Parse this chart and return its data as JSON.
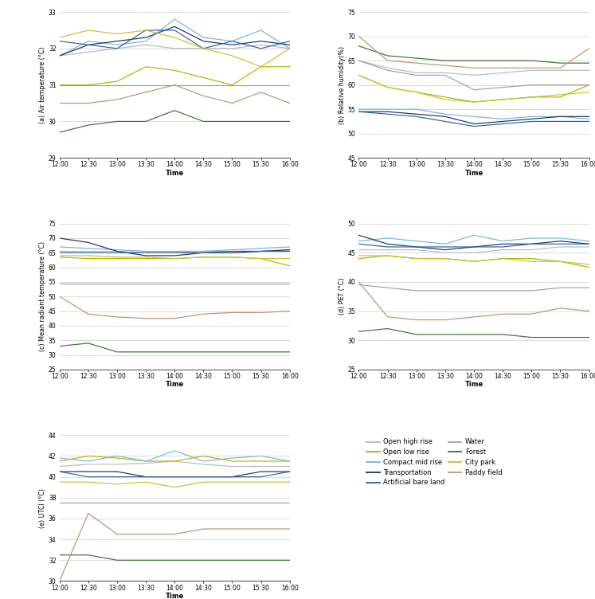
{
  "time_labels": [
    "12:00",
    "12:30",
    "13:00",
    "13:30",
    "14:00",
    "14:30",
    "15:00",
    "15:30",
    "16:00"
  ],
  "series": {
    "Open high rise": {
      "color": "#b8b8b8",
      "air_temp": [
        31.8,
        31.9,
        32.0,
        32.1,
        32.0,
        32.0,
        32.0,
        32.1,
        32.0
      ],
      "rel_hum": [
        65.0,
        63.5,
        62.5,
        62.5,
        62.0,
        62.5,
        63.0,
        63.0,
        63.0
      ],
      "mrt": [
        65.5,
        65.5,
        65.5,
        65.0,
        65.0,
        65.5,
        65.5,
        65.5,
        66.0
      ],
      "pet": [
        45.5,
        45.5,
        45.5,
        45.0,
        45.0,
        45.5,
        45.5,
        46.0,
        46.0
      ],
      "utci": [
        41.0,
        41.2,
        41.2,
        41.3,
        41.5,
        41.2,
        41.0,
        41.0,
        41.0
      ]
    },
    "Open low rise": {
      "color": "#b8b000",
      "air_temp": [
        31.0,
        31.0,
        31.1,
        31.5,
        31.4,
        31.2,
        31.0,
        31.5,
        31.5
      ],
      "rel_hum": [
        62.0,
        59.5,
        58.5,
        57.5,
        56.5,
        57.0,
        57.5,
        57.5,
        60.0
      ],
      "mrt": [
        63.5,
        63.0,
        63.0,
        63.0,
        63.0,
        63.5,
        63.5,
        63.0,
        60.5
      ],
      "pet": [
        44.0,
        44.5,
        44.0,
        44.0,
        43.5,
        44.0,
        44.0,
        43.5,
        42.5
      ],
      "utci": [
        41.5,
        42.0,
        41.8,
        41.5,
        41.5,
        42.0,
        41.5,
        41.5,
        41.5
      ]
    },
    "Compact mid rise": {
      "color": "#70b8d8",
      "air_temp": [
        31.8,
        32.2,
        32.1,
        32.2,
        32.8,
        32.3,
        32.2,
        32.5,
        32.0
      ],
      "rel_hum": [
        55.0,
        55.0,
        55.0,
        54.0,
        53.5,
        53.0,
        53.5,
        53.5,
        53.0
      ],
      "mrt": [
        67.0,
        66.5,
        66.0,
        65.5,
        65.5,
        65.5,
        66.0,
        66.5,
        67.0
      ],
      "pet": [
        47.0,
        47.5,
        47.0,
        46.5,
        48.0,
        47.0,
        47.5,
        47.5,
        47.0
      ],
      "utci": [
        41.8,
        41.5,
        42.0,
        41.5,
        42.5,
        41.5,
        41.8,
        42.0,
        41.5
      ]
    },
    "Transportation": {
      "color": "#1a3060",
      "air_temp": [
        31.8,
        32.1,
        32.2,
        32.3,
        32.6,
        32.2,
        32.1,
        32.2,
        32.1
      ],
      "rel_hum": [
        54.5,
        54.5,
        54.0,
        53.5,
        52.0,
        52.5,
        53.0,
        53.5,
        53.5
      ],
      "mrt": [
        70.0,
        68.5,
        65.5,
        64.0,
        64.0,
        65.0,
        65.0,
        65.5,
        66.0
      ],
      "pet": [
        48.0,
        46.5,
        46.0,
        45.5,
        46.0,
        46.5,
        46.5,
        47.0,
        46.5
      ],
      "utci": [
        40.5,
        40.5,
        40.5,
        40.0,
        40.0,
        40.0,
        40.0,
        40.5,
        40.5
      ]
    },
    "Artificial bare land": {
      "color": "#3060a0",
      "air_temp": [
        32.2,
        32.1,
        32.0,
        32.5,
        32.5,
        32.0,
        32.2,
        32.0,
        32.2
      ],
      "rel_hum": [
        54.5,
        54.0,
        53.5,
        52.5,
        51.5,
        52.0,
        52.5,
        52.5,
        52.5
      ],
      "mrt": [
        65.0,
        65.0,
        65.0,
        65.0,
        65.0,
        65.0,
        65.5,
        65.5,
        65.5
      ],
      "pet": [
        46.5,
        46.0,
        46.0,
        46.0,
        46.0,
        46.0,
        46.5,
        46.5,
        46.5
      ],
      "utci": [
        40.5,
        40.0,
        40.0,
        40.0,
        40.0,
        40.0,
        40.0,
        40.0,
        40.5
      ]
    },
    "Water": {
      "color": "#a0a0a0",
      "air_temp": [
        31.0,
        31.0,
        31.0,
        31.0,
        31.0,
        31.0,
        31.0,
        31.0,
        31.0
      ],
      "rel_hum": [
        65.0,
        63.0,
        62.0,
        62.0,
        59.0,
        59.5,
        60.0,
        60.0,
        60.0
      ],
      "mrt": [
        54.5,
        54.5,
        54.5,
        54.5,
        54.5,
        54.5,
        54.5,
        54.5,
        54.5
      ],
      "pet": [
        39.5,
        39.0,
        38.5,
        38.5,
        38.5,
        38.5,
        38.5,
        39.0,
        39.0
      ],
      "utci": [
        37.5,
        37.5,
        37.5,
        37.5,
        37.5,
        37.5,
        37.5,
        37.5,
        37.5
      ]
    },
    "Forest": {
      "color": "#3a7030",
      "air_temp": [
        29.7,
        29.9,
        30.0,
        30.0,
        30.3,
        30.0,
        30.0,
        30.0,
        30.0
      ],
      "rel_hum": [
        68.0,
        66.0,
        65.5,
        65.0,
        65.0,
        65.0,
        65.0,
        64.5,
        64.5
      ],
      "mrt": [
        33.0,
        34.0,
        31.0,
        31.0,
        31.0,
        31.0,
        31.0,
        31.0,
        31.0
      ],
      "pet": [
        31.5,
        32.0,
        31.0,
        31.0,
        31.0,
        31.0,
        30.5,
        30.5,
        30.5
      ],
      "utci": [
        32.5,
        32.5,
        32.0,
        32.0,
        32.0,
        32.0,
        32.0,
        32.0,
        32.0
      ]
    },
    "City park": {
      "color": "#c8c030",
      "air_temp": [
        32.3,
        32.5,
        32.4,
        32.5,
        32.3,
        32.0,
        31.8,
        31.5,
        32.0
      ],
      "rel_hum": [
        62.0,
        59.5,
        58.5,
        57.0,
        56.5,
        57.0,
        57.5,
        58.0,
        58.5
      ],
      "mrt": [
        64.0,
        64.0,
        63.5,
        63.5,
        63.0,
        63.5,
        63.5,
        63.0,
        63.0
      ],
      "pet": [
        44.5,
        44.5,
        44.0,
        44.0,
        43.5,
        44.0,
        43.5,
        43.5,
        43.0
      ],
      "utci": [
        39.5,
        39.5,
        39.3,
        39.5,
        39.0,
        39.5,
        39.5,
        39.5,
        39.5
      ]
    },
    "Paddy field": {
      "color": "#c09070",
      "air_temp": [
        30.5,
        30.5,
        30.6,
        30.8,
        31.0,
        30.7,
        30.5,
        30.8,
        30.5
      ],
      "rel_hum": [
        70.0,
        65.0,
        64.5,
        64.0,
        63.5,
        63.5,
        63.5,
        63.5,
        67.5
      ],
      "mrt": [
        50.0,
        44.0,
        43.0,
        42.5,
        42.5,
        44.0,
        44.5,
        44.5,
        45.0
      ],
      "pet": [
        40.0,
        34.0,
        33.5,
        33.5,
        34.0,
        34.5,
        34.5,
        35.5,
        35.0
      ],
      "utci": [
        30.0,
        36.5,
        34.5,
        34.5,
        34.5,
        35.0,
        35.0,
        35.0,
        35.0
      ]
    }
  },
  "subplot_configs": [
    {
      "key": "air_temp",
      "ylabel": "(a) Air temperature (°C)",
      "ylim": [
        29,
        33
      ],
      "yticks": [
        29,
        30,
        31,
        32,
        33
      ]
    },
    {
      "key": "rel_hum",
      "ylabel": "(b) Relative humidity(%)",
      "ylim": [
        45,
        75
      ],
      "yticks": [
        45,
        50,
        55,
        60,
        65,
        70,
        75
      ]
    },
    {
      "key": "mrt",
      "ylabel": "(c) Mean radiant temperature (°C)",
      "ylim": [
        25,
        75
      ],
      "yticks": [
        25,
        30,
        35,
        40,
        45,
        50,
        55,
        60,
        65,
        70,
        75
      ]
    },
    {
      "key": "pet",
      "ylabel": "(d) PET (°C)",
      "ylim": [
        25,
        50
      ],
      "yticks": [
        25,
        30,
        35,
        40,
        45,
        50
      ]
    },
    {
      "key": "utci",
      "ylabel": "(e) UTCI (°C)",
      "ylim": [
        30,
        44
      ],
      "yticks": [
        30,
        32,
        34,
        36,
        38,
        40,
        42,
        44
      ]
    }
  ],
  "legend_order": [
    "Open high rise",
    "Open low rise",
    "Compact mid rise",
    "Transportation",
    "Artificial bare land",
    "Water",
    "Forest",
    "City park",
    "Paddy field"
  ]
}
